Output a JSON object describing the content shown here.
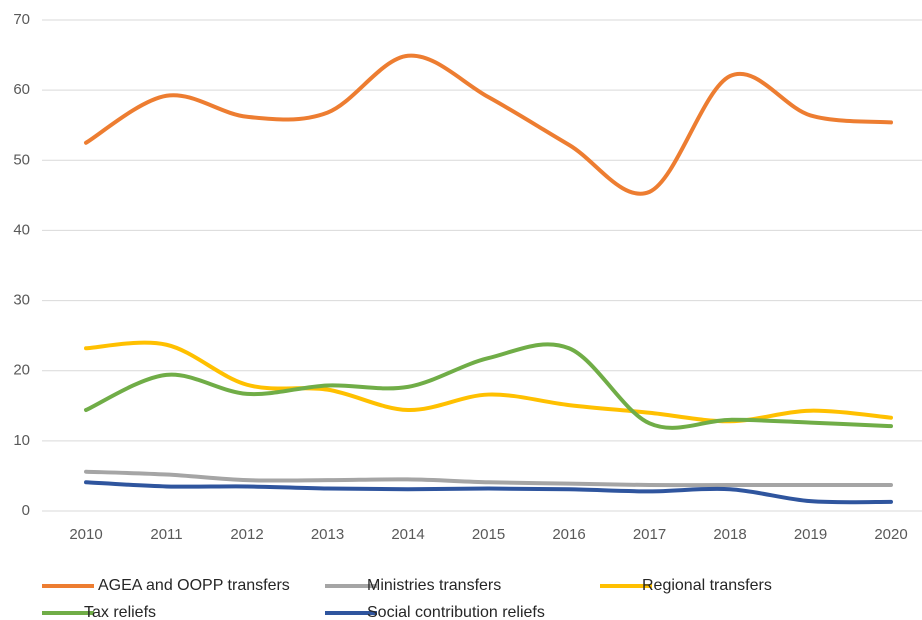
{
  "chart_data": {
    "type": "line",
    "categories": [
      "2010",
      "2011",
      "2012",
      "2013",
      "2014",
      "2015",
      "2016",
      "2017",
      "2018",
      "2019",
      "2020"
    ],
    "series": [
      {
        "name": "AGEA and OOPP transfers",
        "color": "#ed7d31",
        "values": [
          52.5,
          59.2,
          56.2,
          56.8,
          64.9,
          59,
          52.2,
          45.5,
          62,
          56.4,
          55.4
        ]
      },
      {
        "name": "Ministries transfers",
        "color": "#a5a5a5",
        "values": [
          5.6,
          5.2,
          4.4,
          4.4,
          4.5,
          4.1,
          3.9,
          3.7,
          3.7,
          3.7,
          3.7
        ]
      },
      {
        "name": "Regional transfers",
        "color": "#ffc000",
        "values": [
          23.2,
          23.7,
          18,
          17.3,
          14.4,
          16.6,
          15.1,
          14,
          12.8,
          14.3,
          13.3
        ]
      },
      {
        "name": "Tax reliefs",
        "color": "#70ad47",
        "values": [
          14.4,
          19.4,
          16.7,
          17.9,
          17.7,
          21.8,
          23.2,
          12.5,
          13,
          12.6,
          12.1
        ]
      },
      {
        "name": "Social contribution reliefs",
        "color": "#2f559e",
        "values": [
          4.1,
          3.5,
          3.5,
          3.2,
          3.1,
          3.2,
          3.1,
          2.8,
          3.1,
          1.4,
          1.3
        ]
      }
    ],
    "ylim": [
      0,
      70
    ],
    "yticks": [
      0,
      10,
      20,
      30,
      40,
      50,
      60,
      70
    ],
    "grid": true,
    "smooth": true,
    "legend": "bottom"
  }
}
